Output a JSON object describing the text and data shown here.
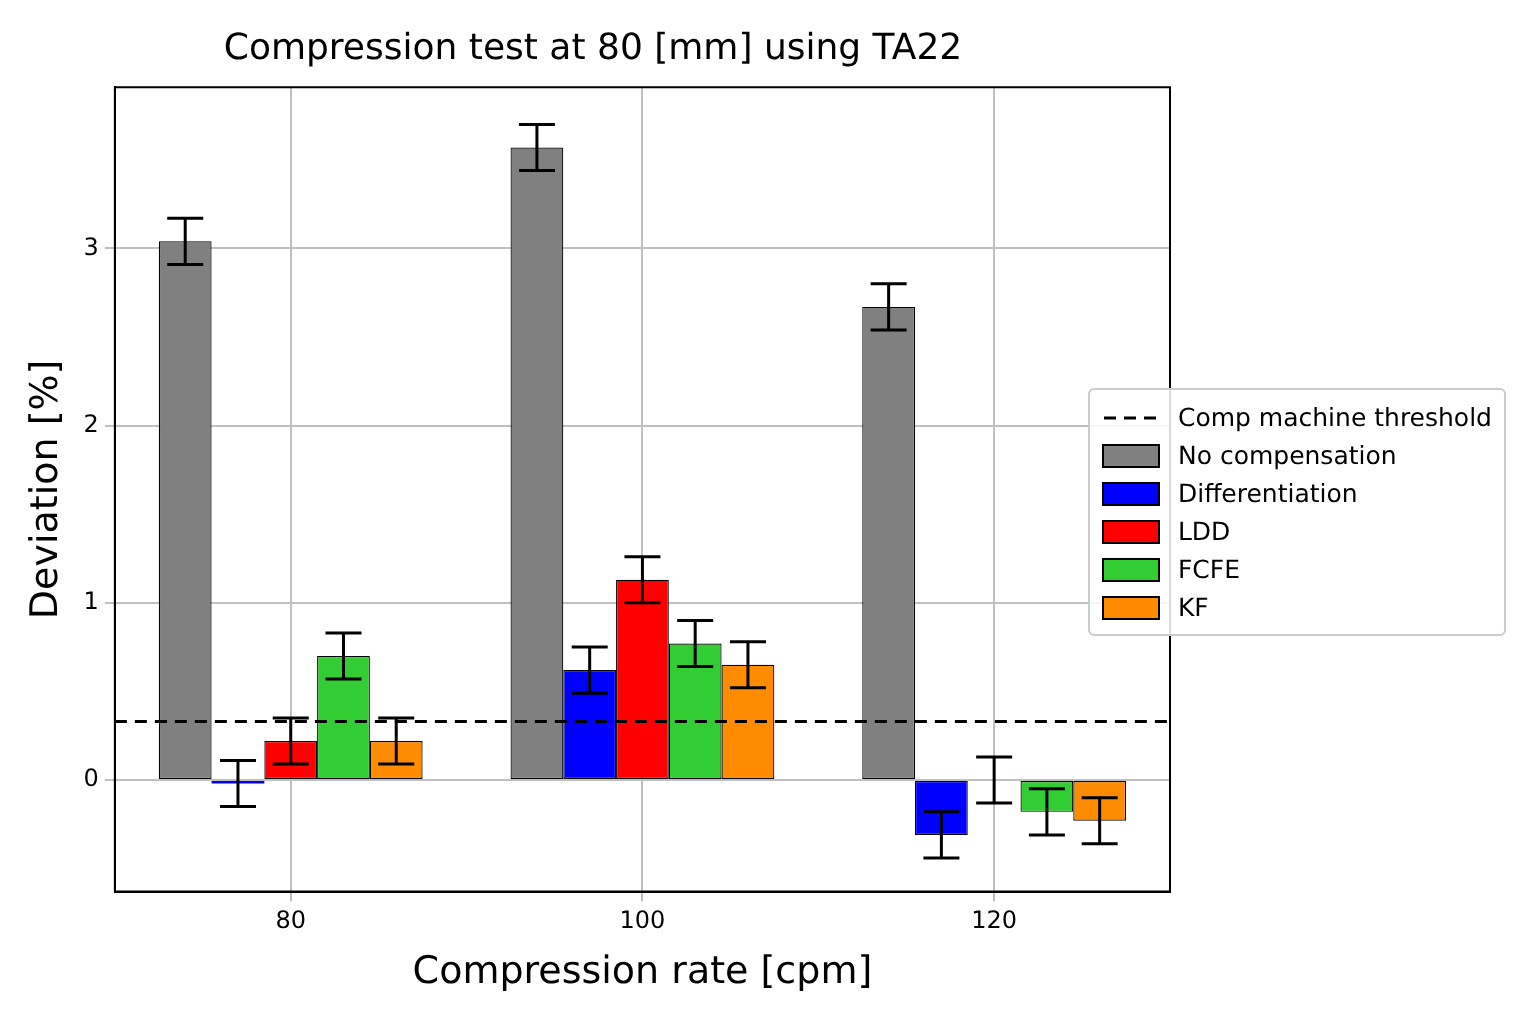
{
  "chart_data": {
    "type": "bar",
    "title": "Compression test at 80 [mm] using TA22",
    "xlabel": "Compression rate [cpm]",
    "ylabel": "Deviation [%]",
    "categories": [
      "80",
      "100",
      "120"
    ],
    "series": [
      {
        "name": "No compensation",
        "color": "#808080",
        "values": [
          3.04,
          3.57,
          2.67
        ],
        "errors": [
          0.13,
          0.13,
          0.13
        ]
      },
      {
        "name": "Differentiation",
        "color": "#0000ff",
        "values": [
          -0.02,
          0.62,
          -0.31
        ],
        "errors": [
          0.13,
          0.13,
          0.13
        ]
      },
      {
        "name": "LDD",
        "color": "#ff0000",
        "values": [
          0.22,
          1.13,
          0
        ],
        "errors": [
          0.13,
          0.13,
          0.13
        ]
      },
      {
        "name": "FCFE",
        "color": "#32cd32",
        "values": [
          0.7,
          0.77,
          -0.18
        ],
        "errors": [
          0.13,
          0.13,
          0.13
        ]
      },
      {
        "name": "KF",
        "color": "#ff8c00",
        "values": [
          0.22,
          0.65,
          -0.23
        ],
        "errors": [
          0.13,
          0.13,
          0.13
        ]
      }
    ],
    "ylim": [
      -0.63,
      3.91
    ],
    "yticks": [
      0,
      1,
      2,
      3
    ],
    "ref_lines": [
      {
        "axis": "y",
        "value": 0.33,
        "label": "Comp machine threshold",
        "color": "#000000",
        "line_style": "dashed"
      }
    ],
    "grid": true,
    "legend": "right"
  }
}
